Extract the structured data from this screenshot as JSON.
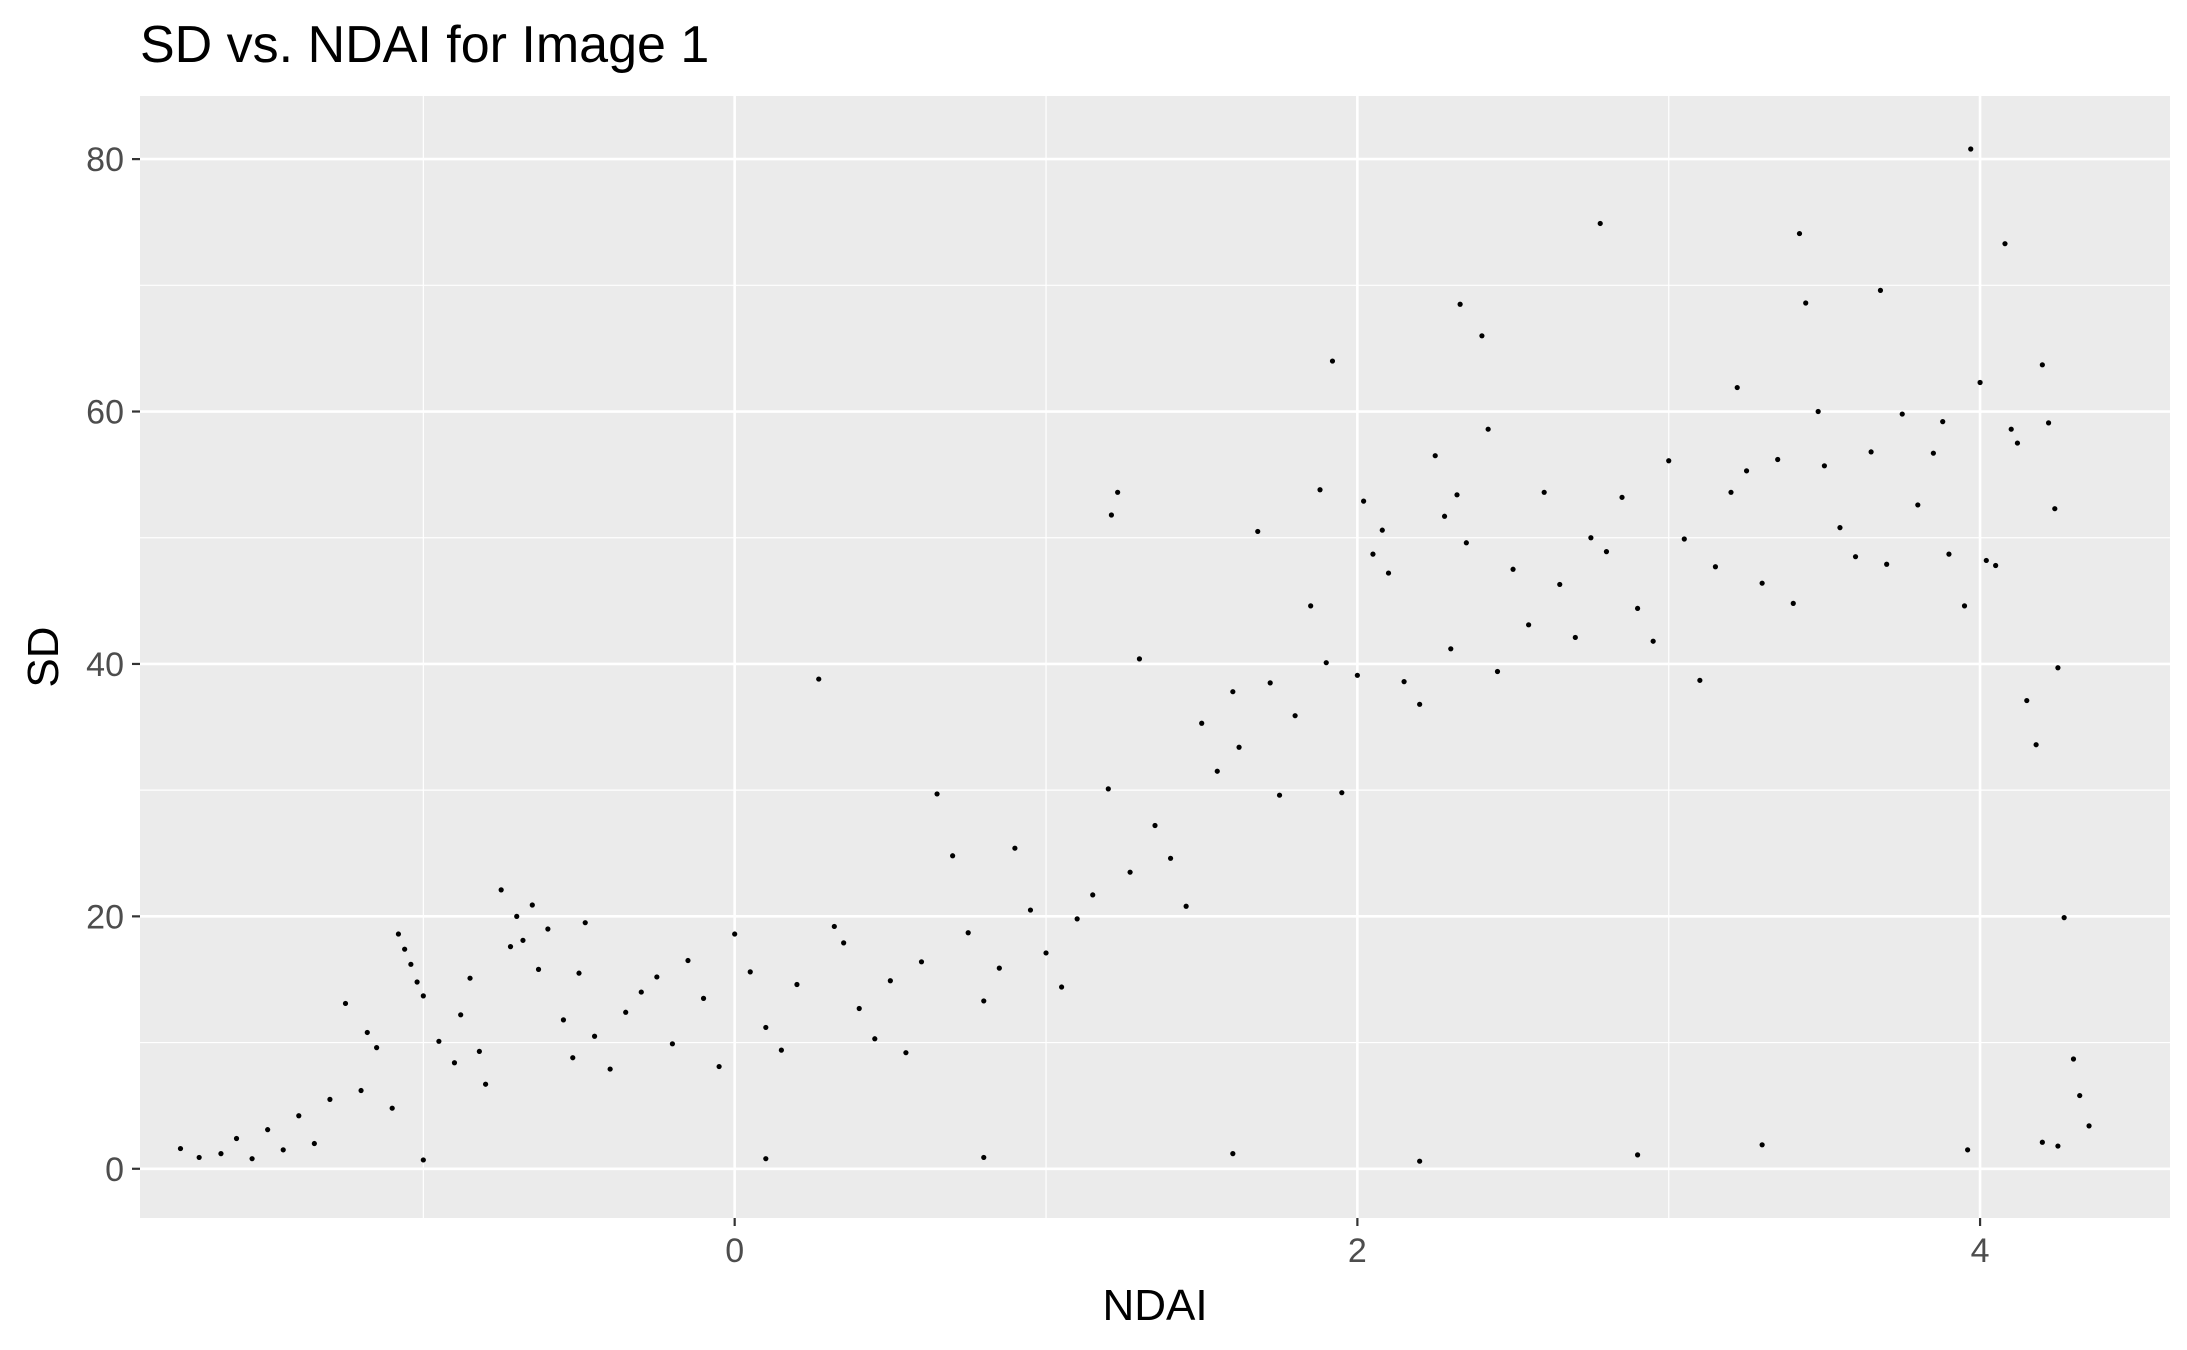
{
  "chart_data": {
    "type": "scatter",
    "title": "SD vs. NDAI for Image 1",
    "xlabel": "NDAI",
    "ylabel": "SD",
    "xlim": [
      -1.91,
      4.61
    ],
    "ylim": [
      -3.9,
      85.0
    ],
    "x_ticks": [
      0,
      2,
      4
    ],
    "x_tick_labels": [
      "0",
      "2",
      "4"
    ],
    "y_ticks": [
      0,
      20,
      40,
      60,
      80
    ],
    "y_tick_labels": [
      "0",
      "20",
      "40",
      "60",
      "80"
    ],
    "grid": true,
    "legend": "none",
    "colors": {
      "panel_background": "#ebebeb",
      "grid_major": "#ffffff",
      "points": "#000000",
      "tick_text": "#4d4d4d"
    },
    "series": [
      {
        "points": [
          [
            -1.78,
            1.6
          ],
          [
            -1.72,
            0.9
          ],
          [
            -1.65,
            1.2
          ],
          [
            -1.6,
            2.4
          ],
          [
            -1.55,
            0.8
          ],
          [
            -1.5,
            3.1
          ],
          [
            -1.45,
            1.5
          ],
          [
            -1.4,
            4.2
          ],
          [
            -1.35,
            2.0
          ],
          [
            -1.3,
            5.5
          ],
          [
            -1.25,
            13.1
          ],
          [
            -1.2,
            6.2
          ],
          [
            -1.18,
            10.8
          ],
          [
            -1.15,
            9.6
          ],
          [
            -1.1,
            4.8
          ],
          [
            -1.08,
            18.6
          ],
          [
            -1.06,
            17.4
          ],
          [
            -1.04,
            16.2
          ],
          [
            -1.02,
            14.8
          ],
          [
            -1.0,
            13.7
          ],
          [
            -0.95,
            10.1
          ],
          [
            -0.9,
            8.4
          ],
          [
            -0.88,
            12.2
          ],
          [
            -0.85,
            15.1
          ],
          [
            -0.82,
            9.3
          ],
          [
            -0.8,
            6.7
          ],
          [
            -0.75,
            22.1
          ],
          [
            -0.72,
            17.6
          ],
          [
            -0.7,
            20.0
          ],
          [
            -0.68,
            18.1
          ],
          [
            -0.65,
            20.9
          ],
          [
            -0.63,
            15.8
          ],
          [
            -0.6,
            19.0
          ],
          [
            -0.55,
            11.8
          ],
          [
            -0.52,
            8.8
          ],
          [
            -0.5,
            15.5
          ],
          [
            -0.48,
            19.5
          ],
          [
            -0.45,
            10.5
          ],
          [
            -0.4,
            7.9
          ],
          [
            -0.35,
            12.4
          ],
          [
            -0.3,
            14.0
          ],
          [
            -0.25,
            15.2
          ],
          [
            -0.2,
            9.9
          ],
          [
            -0.15,
            16.5
          ],
          [
            -0.1,
            13.5
          ],
          [
            -0.05,
            8.1
          ],
          [
            0.0,
            18.6
          ],
          [
            0.05,
            15.6
          ],
          [
            0.1,
            11.2
          ],
          [
            0.15,
            9.4
          ],
          [
            0.2,
            14.6
          ],
          [
            0.27,
            38.8
          ],
          [
            0.32,
            19.2
          ],
          [
            0.35,
            17.9
          ],
          [
            0.4,
            12.7
          ],
          [
            0.45,
            10.3
          ],
          [
            0.5,
            14.9
          ],
          [
            0.55,
            9.2
          ],
          [
            0.6,
            16.4
          ],
          [
            0.65,
            29.7
          ],
          [
            0.7,
            24.8
          ],
          [
            0.75,
            18.7
          ],
          [
            0.8,
            13.3
          ],
          [
            0.85,
            15.9
          ],
          [
            0.9,
            25.4
          ],
          [
            0.95,
            20.5
          ],
          [
            1.0,
            17.1
          ],
          [
            1.05,
            14.4
          ],
          [
            1.1,
            19.8
          ],
          [
            1.15,
            21.7
          ],
          [
            1.2,
            30.1
          ],
          [
            1.21,
            51.8
          ],
          [
            1.23,
            53.6
          ],
          [
            1.27,
            23.5
          ],
          [
            1.3,
            40.4
          ],
          [
            1.35,
            27.2
          ],
          [
            1.4,
            24.6
          ],
          [
            1.45,
            20.8
          ],
          [
            1.5,
            35.3
          ],
          [
            1.55,
            31.5
          ],
          [
            1.6,
            37.8
          ],
          [
            1.62,
            33.4
          ],
          [
            1.68,
            50.5
          ],
          [
            1.72,
            38.5
          ],
          [
            1.75,
            29.6
          ],
          [
            1.8,
            35.9
          ],
          [
            1.85,
            44.6
          ],
          [
            1.88,
            53.8
          ],
          [
            1.9,
            40.1
          ],
          [
            1.92,
            64.0
          ],
          [
            1.95,
            29.8
          ],
          [
            2.0,
            39.1
          ],
          [
            2.02,
            52.9
          ],
          [
            2.05,
            48.7
          ],
          [
            2.08,
            50.6
          ],
          [
            2.1,
            47.2
          ],
          [
            2.15,
            38.6
          ],
          [
            2.2,
            36.8
          ],
          [
            2.25,
            56.5
          ],
          [
            2.28,
            51.7
          ],
          [
            2.3,
            41.2
          ],
          [
            2.32,
            53.4
          ],
          [
            2.33,
            68.5
          ],
          [
            2.35,
            49.6
          ],
          [
            2.4,
            66.0
          ],
          [
            2.42,
            58.6
          ],
          [
            2.45,
            39.4
          ],
          [
            2.5,
            47.5
          ],
          [
            2.55,
            43.1
          ],
          [
            2.6,
            53.6
          ],
          [
            2.65,
            46.3
          ],
          [
            2.7,
            42.1
          ],
          [
            2.75,
            50.0
          ],
          [
            2.78,
            74.9
          ],
          [
            2.8,
            48.9
          ],
          [
            2.85,
            53.2
          ],
          [
            2.9,
            44.4
          ],
          [
            2.95,
            41.8
          ],
          [
            3.0,
            56.1
          ],
          [
            3.05,
            49.9
          ],
          [
            3.1,
            38.7
          ],
          [
            3.15,
            47.7
          ],
          [
            3.2,
            53.6
          ],
          [
            3.22,
            61.9
          ],
          [
            3.25,
            55.3
          ],
          [
            3.3,
            46.4
          ],
          [
            3.35,
            56.2
          ],
          [
            3.4,
            44.8
          ],
          [
            3.42,
            74.1
          ],
          [
            3.44,
            68.6
          ],
          [
            3.48,
            60.0
          ],
          [
            3.5,
            55.7
          ],
          [
            3.55,
            50.8
          ],
          [
            3.6,
            48.5
          ],
          [
            3.65,
            56.8
          ],
          [
            3.68,
            69.6
          ],
          [
            3.7,
            47.9
          ],
          [
            3.75,
            59.8
          ],
          [
            3.8,
            52.6
          ],
          [
            3.85,
            56.7
          ],
          [
            3.88,
            59.2
          ],
          [
            3.9,
            48.7
          ],
          [
            3.95,
            44.6
          ],
          [
            3.97,
            80.8
          ],
          [
            4.0,
            62.3
          ],
          [
            4.02,
            48.2
          ],
          [
            4.05,
            47.8
          ],
          [
            4.08,
            73.3
          ],
          [
            4.1,
            58.6
          ],
          [
            4.12,
            57.5
          ],
          [
            4.15,
            37.1
          ],
          [
            4.18,
            33.6
          ],
          [
            4.2,
            63.7
          ],
          [
            4.22,
            59.1
          ],
          [
            4.24,
            52.3
          ],
          [
            4.25,
            39.7
          ],
          [
            4.27,
            19.9
          ],
          [
            4.3,
            8.7
          ],
          [
            4.32,
            5.8
          ],
          [
            4.35,
            3.4
          ],
          [
            4.25,
            1.8
          ],
          [
            4.2,
            2.1
          ],
          [
            3.96,
            1.5
          ],
          [
            0.1,
            0.8
          ],
          [
            2.2,
            0.6
          ],
          [
            1.6,
            1.2
          ],
          [
            2.9,
            1.1
          ],
          [
            3.3,
            1.9
          ],
          [
            -1.0,
            0.7
          ],
          [
            0.8,
            0.9
          ]
        ]
      }
    ]
  }
}
